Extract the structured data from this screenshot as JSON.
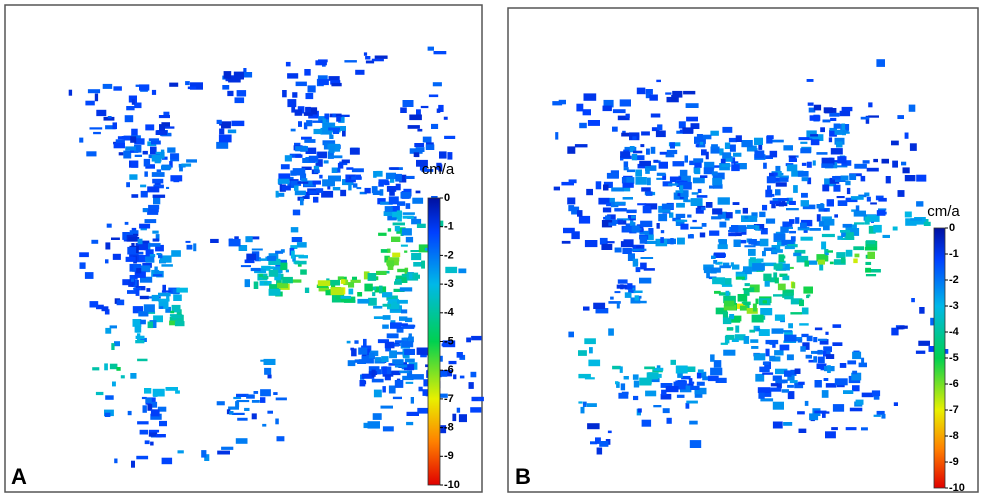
{
  "panels": [
    {
      "label": "A",
      "colorbar": {
        "unit": "cm/a",
        "lim": [
          0,
          -10
        ],
        "ticks": [
          0,
          -1,
          -2,
          -3,
          -4,
          -5,
          -6,
          -7,
          -8,
          -9,
          -10
        ]
      }
    },
    {
      "label": "B",
      "colorbar": {
        "unit": "cm/a",
        "lim": [
          0,
          -10
        ],
        "ticks": [
          0,
          -1,
          -2,
          -3,
          -4,
          -5,
          -6,
          -7,
          -8,
          -9,
          -10
        ]
      }
    }
  ]
}
